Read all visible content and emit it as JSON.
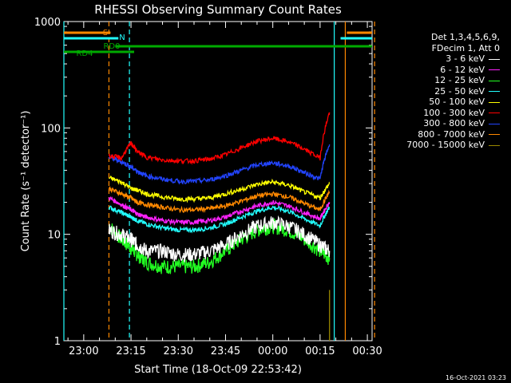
{
  "chart_data": {
    "type": "line",
    "title": "RHESSI Observing Summary Count Rates",
    "xlabel": "Start Time (18-Oct-09 22:53:42)",
    "ylabel": "Count Rate (s⁻¹ detector⁻¹)",
    "yscale": "log",
    "ylim": [
      1,
      1000
    ],
    "xlim": [
      "22:53:42",
      "00:31:30"
    ],
    "x_ticks": [
      "23:00",
      "23:15",
      "23:30",
      "23:45",
      "00:00",
      "00:15",
      "00:30"
    ],
    "y_ticks": [
      "1",
      "10",
      "100",
      "1000"
    ],
    "x_minutes_since_2300": {
      "start": -6.3,
      "end": 91.5,
      "ticks": [
        0,
        15,
        30,
        45,
        60,
        75,
        90
      ],
      "times": [
        8,
        12,
        15,
        17,
        20,
        25,
        30,
        35,
        40,
        45,
        50,
        55,
        60,
        65,
        70,
        75,
        78
      ]
    },
    "series": [
      {
        "name": "3 - 6 keV",
        "color": "#ffffff",
        "values": [
          11,
          10,
          9,
          8,
          7,
          7,
          6.5,
          6.5,
          7,
          8,
          10,
          12,
          13,
          12,
          10,
          8,
          7
        ]
      },
      {
        "name": "6 - 12 keV",
        "color": "#ff22ff",
        "values": [
          22,
          19,
          17,
          15.5,
          14.5,
          13.5,
          13,
          13,
          13.5,
          14.5,
          16.5,
          18.5,
          20,
          18.5,
          16,
          14,
          20
        ]
      },
      {
        "name": "12 - 25 keV",
        "color": "#22ff22",
        "values": [
          12,
          9,
          7.5,
          6.5,
          5.5,
          5,
          5,
          5,
          5.5,
          7,
          9,
          11,
          12,
          11,
          9,
          7,
          6
        ]
      },
      {
        "name": "25 - 50 keV",
        "color": "#22ffff",
        "values": [
          18,
          16,
          14.5,
          13.5,
          12.5,
          11.5,
          11,
          11,
          11.5,
          12.5,
          14.5,
          16.5,
          18,
          16.5,
          14,
          12,
          18
        ]
      },
      {
        "name": "50 - 100 keV",
        "color": "#ffff00",
        "values": [
          34,
          31,
          27,
          26,
          24,
          22.5,
          21.5,
          21.5,
          22,
          24,
          26.5,
          29.5,
          31,
          29,
          25,
          22,
          30
        ]
      },
      {
        "name": "100 - 300 keV",
        "color": "#ff0000",
        "values": [
          55,
          52,
          72,
          60,
          53,
          50,
          49,
          49,
          51,
          56,
          65,
          75,
          80,
          74,
          63,
          52,
          140
        ]
      },
      {
        "name": "300 - 800 keV",
        "color": "#2244ff",
        "values": [
          53,
          48,
          43,
          39,
          35.5,
          33,
          31.5,
          31.5,
          32.5,
          35.5,
          40,
          45,
          47,
          44,
          38,
          33,
          70
        ]
      },
      {
        "name": "800 - 7000 keV",
        "color": "#ff8800",
        "values": [
          27,
          24,
          22,
          20,
          19,
          18,
          17,
          17,
          17.5,
          18.5,
          20.5,
          23,
          24,
          22.5,
          19.5,
          17,
          25
        ]
      },
      {
        "name": "7000 - 15000 keV",
        "color": "#998800",
        "values": [
          null,
          null,
          null,
          null,
          null,
          null,
          null,
          null,
          null,
          null,
          null,
          null,
          null,
          null,
          null,
          null,
          3
        ]
      }
    ],
    "legend_header": [
      "Det 1,3,4,5,6,9,",
      "FDecim 1, Att 0"
    ],
    "legend_position": "right",
    "annotations": {
      "flags": [
        {
          "label": "S",
          "color": "#ff8800",
          "spans": [
            [
              -6.3,
              8.5
            ],
            [
              83.5,
              91.5
            ]
          ]
        },
        {
          "label": "N",
          "color": "#22ffff",
          "spans": [
            [
              -6.3,
              11
            ],
            [
              81.5,
              91.5
            ]
          ]
        },
        {
          "label": "RD0",
          "color": "#00aa00",
          "spans": [
            [
              10,
              91.5
            ]
          ]
        },
        {
          "label": "RD4",
          "color": "#00aa00",
          "spans": [
            [
              -6.3,
              16
            ]
          ]
        }
      ],
      "vlines": [
        {
          "x": -6.3,
          "color": "#22ffff",
          "style": "solid"
        },
        {
          "x": 8,
          "color": "#ff8800",
          "style": "dashed"
        },
        {
          "x": 14.5,
          "color": "#22ffff",
          "style": "dashed"
        },
        {
          "x": 79.5,
          "color": "#22ffff",
          "style": "solid"
        },
        {
          "x": 83,
          "color": "#ff8800",
          "style": "solid"
        },
        {
          "x": 92.3,
          "color": "#ff8800",
          "style": "dashed"
        }
      ]
    },
    "timestamp": "16-Oct-2021 03:23"
  }
}
